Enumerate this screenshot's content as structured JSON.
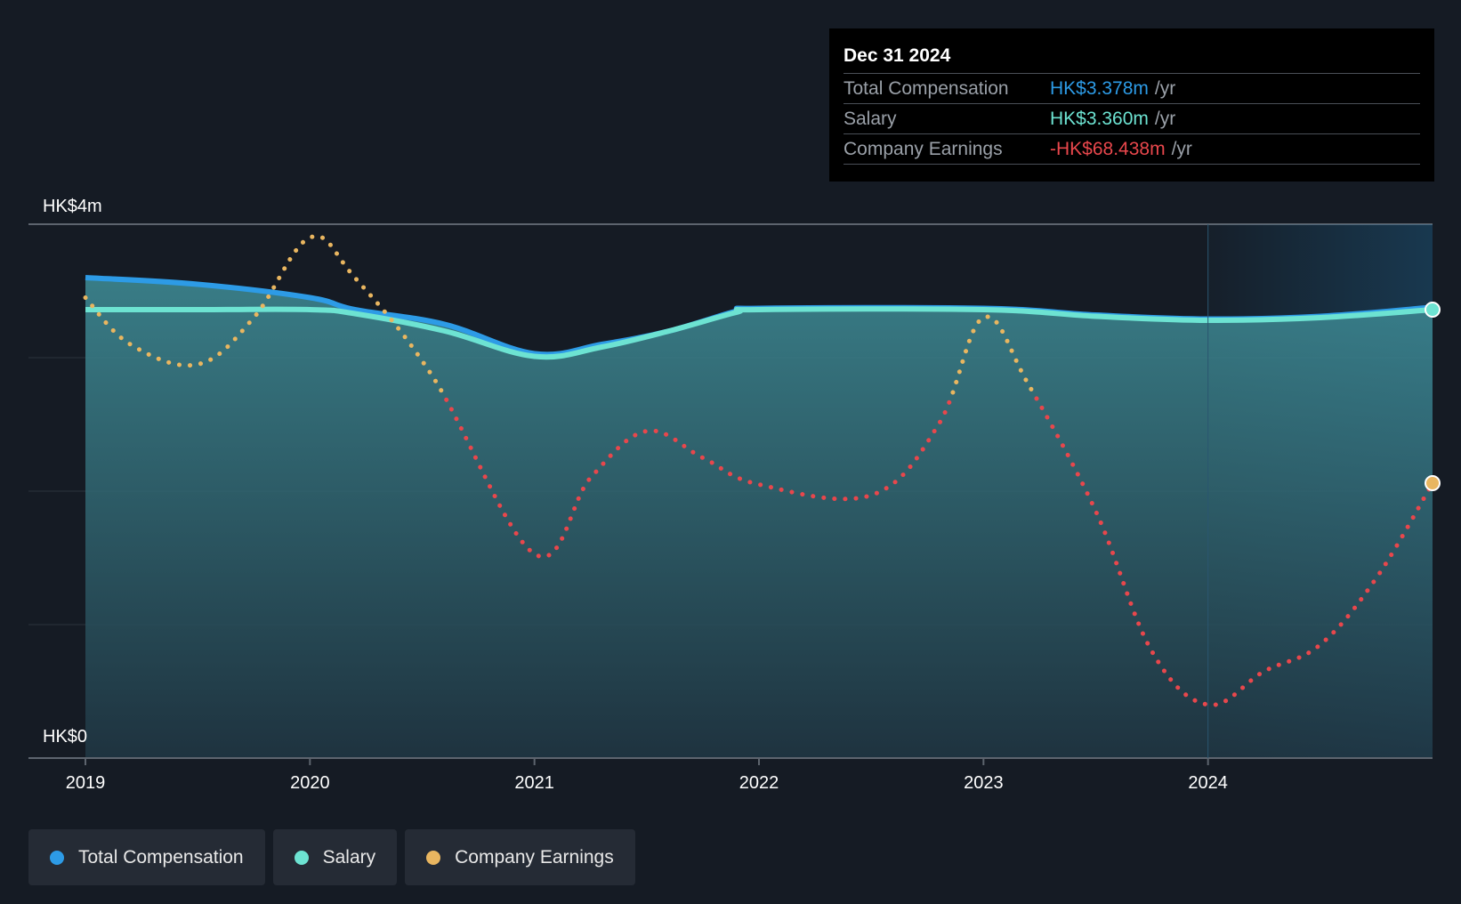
{
  "tooltip": {
    "date": "Dec 31 2024",
    "rows": [
      {
        "label": "Total Compensation",
        "value": "HK$3.378m",
        "unit": "/yr",
        "color": "#2d9be6"
      },
      {
        "label": "Salary",
        "value": "HK$3.360m",
        "unit": "/yr",
        "color": "#6de3d2"
      },
      {
        "label": "Company Earnings",
        "value": "-HK$68.438m",
        "unit": "/yr",
        "color": "#e8474c"
      }
    ]
  },
  "legend": [
    {
      "label": "Total Compensation",
      "color": "#2d9be6"
    },
    {
      "label": "Salary",
      "color": "#6de3d2"
    },
    {
      "label": "Company Earnings",
      "color": "#e9b660"
    }
  ],
  "chart_data": {
    "type": "area",
    "y_axis_labels": {
      "top": "HK$4m",
      "bottom": "HK$0"
    },
    "ylim": [
      0,
      4
    ],
    "xlim": [
      2019,
      2025
    ],
    "x_ticks": [
      "2019",
      "2020",
      "2021",
      "2022",
      "2023",
      "2024"
    ],
    "series": [
      {
        "name": "Total Compensation",
        "color": "#2d9be6",
        "x": [
          2019,
          2019.5,
          2020,
          2020.2,
          2020.6,
          2021,
          2021.3,
          2021.6,
          2021.9,
          2022,
          2023,
          2023.5,
          2024,
          2024.5,
          2025
        ],
        "values": [
          3.6,
          3.55,
          3.45,
          3.36,
          3.25,
          3.03,
          3.1,
          3.2,
          3.35,
          3.37,
          3.37,
          3.32,
          3.29,
          3.31,
          3.378
        ]
      },
      {
        "name": "Salary",
        "color": "#6de3d2",
        "x": [
          2019,
          2019.5,
          2020,
          2020.2,
          2020.6,
          2021,
          2021.3,
          2021.6,
          2021.9,
          2022,
          2023,
          2023.5,
          2024,
          2024.5,
          2025
        ],
        "values": [
          3.36,
          3.36,
          3.36,
          3.33,
          3.2,
          3.01,
          3.08,
          3.2,
          3.34,
          3.36,
          3.36,
          3.31,
          3.28,
          3.3,
          3.36
        ]
      },
      {
        "name": "Company Earnings",
        "color_positive": "#e9b660",
        "color_negative": "#e8474c",
        "relative_scale": true,
        "x": [
          2019,
          2019.2,
          2019.5,
          2019.75,
          2020,
          2020.2,
          2020.55,
          2021,
          2021.25,
          2021.5,
          2021.75,
          2022,
          2022.5,
          2022.8,
          2023,
          2023.2,
          2023.5,
          2023.75,
          2024,
          2024.25,
          2024.5,
          2024.75,
          2025
        ],
        "values": [
          3.45,
          3.1,
          2.95,
          3.3,
          3.9,
          3.6,
          2.85,
          1.53,
          2.1,
          2.45,
          2.25,
          2.05,
          1.97,
          2.5,
          3.3,
          2.8,
          1.85,
          0.8,
          0.4,
          0.65,
          0.85,
          1.35,
          2.06
        ]
      }
    ],
    "threshold_value": 2.72
  }
}
